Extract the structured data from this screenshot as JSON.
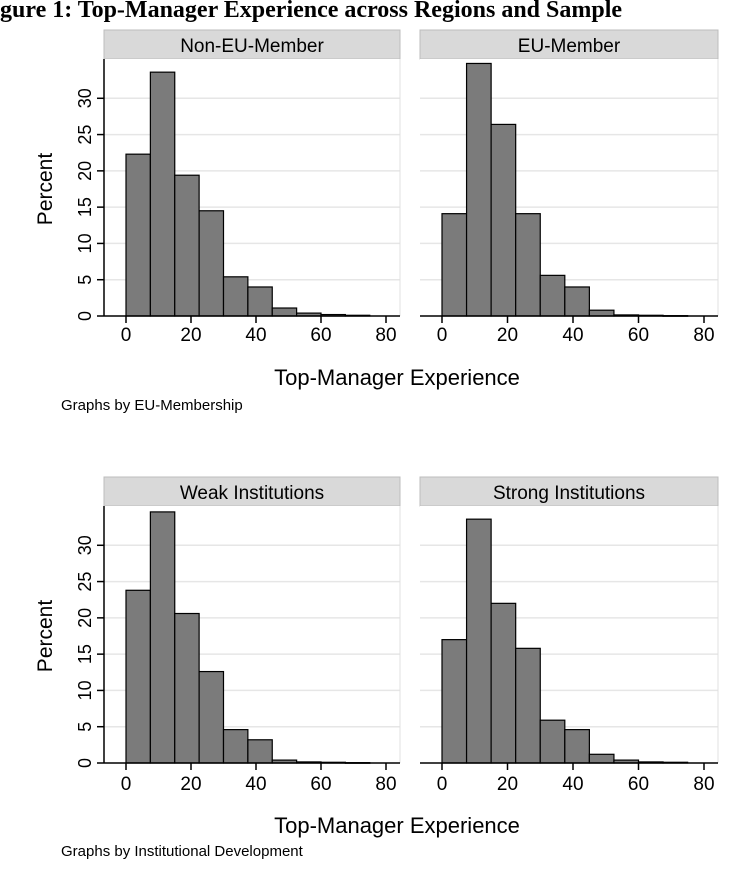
{
  "figure_title": "gure 1: Top-Manager Experience across Regions and Sample",
  "chart_data": [
    {
      "type": "bar",
      "xlabel": "Top-Manager Experience",
      "ylabel": "Percent",
      "note": "Graphs by EU-Membership",
      "xlim": [
        0,
        80
      ],
      "ylim": [
        0,
        35
      ],
      "xticks": [
        0,
        20,
        40,
        60,
        80
      ],
      "yticks": [
        0,
        5,
        10,
        15,
        20,
        25,
        30
      ],
      "bin_width": 7.5,
      "bin_starts": [
        0,
        7.5,
        15,
        22.5,
        30,
        37.5,
        45,
        52.5,
        60,
        67.5
      ],
      "panels": [
        {
          "title": "Non-EU-Member",
          "values": [
            22.3,
            33.6,
            19.4,
            14.5,
            5.4,
            4.0,
            1.1,
            0.4,
            0.2,
            0.1
          ]
        },
        {
          "title": "EU-Member",
          "values": [
            14.1,
            34.8,
            26.4,
            14.1,
            5.6,
            4.0,
            0.8,
            0.15,
            0.1,
            0.05
          ]
        }
      ]
    },
    {
      "type": "bar",
      "xlabel": "Top-Manager Experience",
      "ylabel": "Percent",
      "note": "Graphs by Institutional Development",
      "xlim": [
        0,
        80
      ],
      "ylim": [
        0,
        35
      ],
      "xticks": [
        0,
        20,
        40,
        60,
        80
      ],
      "yticks": [
        0,
        5,
        10,
        15,
        20,
        25,
        30
      ],
      "bin_width": 7.5,
      "bin_starts": [
        0,
        7.5,
        15,
        22.5,
        30,
        37.5,
        45,
        52.5,
        60,
        67.5
      ],
      "panels": [
        {
          "title": "Weak Institutions",
          "values": [
            23.8,
            34.6,
            20.6,
            12.6,
            4.6,
            3.2,
            0.4,
            0.15,
            0.1,
            0.05
          ]
        },
        {
          "title": "Strong Institutions",
          "values": [
            17.0,
            33.6,
            22.0,
            15.8,
            5.9,
            4.6,
            1.2,
            0.4,
            0.15,
            0.1
          ]
        }
      ]
    }
  ],
  "colors": {
    "bar_fill": "#7b7b7b",
    "bar_stroke": "#000000",
    "strip_fill": "#d9d9d9",
    "grid": "#e6e6e6",
    "axis": "#000000"
  }
}
